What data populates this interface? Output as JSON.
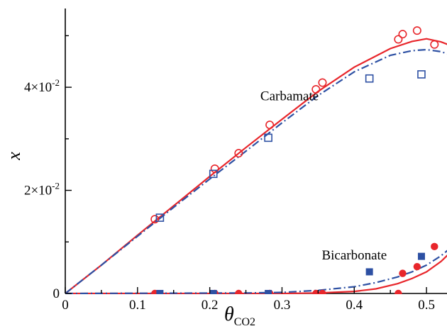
{
  "chart_data": {
    "type": "scatter",
    "title": "",
    "xlabel": "θ",
    "xlabel_subscript": "CO2",
    "ylabel": "x",
    "xlim": [
      0,
      0.55
    ],
    "ylim": [
      0,
      0.055
    ],
    "x_ticks": [
      {
        "value": 0,
        "label": "0"
      },
      {
        "value": 0.1,
        "label": "0.1"
      },
      {
        "value": 0.2,
        "label": "0.2"
      },
      {
        "value": 0.3,
        "label": "0.3"
      },
      {
        "value": 0.4,
        "label": "0.4"
      },
      {
        "value": 0.5,
        "label": "0.5"
      }
    ],
    "y_ticks": [
      {
        "value": 0,
        "label": "0",
        "exp": ""
      },
      {
        "value": 0.02,
        "label": "2×10",
        "exp": "-2"
      },
      {
        "value": 0.04,
        "label": "4×10",
        "exp": "-2"
      }
    ],
    "annotations": [
      {
        "text": "Carbamate",
        "x": 0.27,
        "y": 0.0375
      },
      {
        "text": "Bicarbonate",
        "x": 0.355,
        "y": 0.0066
      }
    ],
    "colors": {
      "red": "#e8262b",
      "blue": "#2d50a3"
    },
    "series": [
      {
        "kind": "points",
        "marker": "circle-open",
        "color": "#e8262b",
        "points": [
          [
            0.124,
            0.0144
          ],
          [
            0.207,
            0.0242
          ],
          [
            0.24,
            0.0272
          ],
          [
            0.283,
            0.0327
          ],
          [
            0.347,
            0.0396
          ],
          [
            0.356,
            0.0409
          ],
          [
            0.461,
            0.0493
          ],
          [
            0.467,
            0.0503
          ],
          [
            0.487,
            0.051
          ],
          [
            0.511,
            0.0483
          ]
        ]
      },
      {
        "kind": "points",
        "marker": "square-open",
        "color": "#2d50a3",
        "points": [
          [
            0.131,
            0.0147
          ],
          [
            0.205,
            0.0232
          ],
          [
            0.281,
            0.0302
          ],
          [
            0.421,
            0.0417
          ],
          [
            0.493,
            0.0425
          ]
        ]
      },
      {
        "kind": "points",
        "marker": "circle-filled",
        "color": "#e8262b",
        "points": [
          [
            0.124,
            0.0
          ],
          [
            0.207,
            0.0
          ],
          [
            0.24,
            0.0
          ],
          [
            0.283,
            0.0
          ],
          [
            0.347,
            0.0
          ],
          [
            0.356,
            0.0
          ],
          [
            0.461,
            0.0
          ],
          [
            0.467,
            0.0039
          ],
          [
            0.487,
            0.0052
          ],
          [
            0.511,
            0.0091
          ]
        ]
      },
      {
        "kind": "points",
        "marker": "square-filled",
        "color": "#2d50a3",
        "points": [
          [
            0.131,
            0.0
          ],
          [
            0.205,
            0.0
          ],
          [
            0.281,
            0.0
          ],
          [
            0.421,
            0.0042
          ],
          [
            0.493,
            0.0072
          ]
        ]
      },
      {
        "kind": "line",
        "style": "solid",
        "color": "#e8262b",
        "points": [
          [
            0,
            0
          ],
          [
            0.05,
            0.0055
          ],
          [
            0.1,
            0.0113
          ],
          [
            0.15,
            0.017
          ],
          [
            0.2,
            0.0227
          ],
          [
            0.25,
            0.0283
          ],
          [
            0.3,
            0.0338
          ],
          [
            0.35,
            0.0392
          ],
          [
            0.4,
            0.0439
          ],
          [
            0.45,
            0.0475
          ],
          [
            0.48,
            0.0489
          ],
          [
            0.5,
            0.0494
          ],
          [
            0.52,
            0.0488
          ],
          [
            0.55,
            0.0472
          ]
        ]
      },
      {
        "kind": "line",
        "style": "dashdot",
        "color": "#2d50a3",
        "points": [
          [
            0,
            0
          ],
          [
            0.05,
            0.0055
          ],
          [
            0.1,
            0.0111
          ],
          [
            0.15,
            0.0167
          ],
          [
            0.2,
            0.0222
          ],
          [
            0.25,
            0.0276
          ],
          [
            0.3,
            0.0331
          ],
          [
            0.35,
            0.0384
          ],
          [
            0.4,
            0.043
          ],
          [
            0.45,
            0.0462
          ],
          [
            0.48,
            0.0471
          ],
          [
            0.5,
            0.0473
          ],
          [
            0.52,
            0.0469
          ],
          [
            0.55,
            0.0455
          ]
        ]
      },
      {
        "kind": "line",
        "style": "solid",
        "color": "#e8262b",
        "points": [
          [
            0,
            0
          ],
          [
            0.3,
            0.0
          ],
          [
            0.35,
            0.0001
          ],
          [
            0.4,
            0.0004
          ],
          [
            0.43,
            0.0009
          ],
          [
            0.46,
            0.0019
          ],
          [
            0.48,
            0.0029
          ],
          [
            0.5,
            0.0042
          ],
          [
            0.52,
            0.0062
          ],
          [
            0.54,
            0.0089
          ],
          [
            0.55,
            0.0104
          ]
        ]
      },
      {
        "kind": "line",
        "style": "dashdot",
        "color": "#2d50a3",
        "points": [
          [
            0,
            0
          ],
          [
            0.25,
            0.0001
          ],
          [
            0.3,
            0.0002
          ],
          [
            0.35,
            0.0006
          ],
          [
            0.4,
            0.0013
          ],
          [
            0.43,
            0.0021
          ],
          [
            0.46,
            0.0032
          ],
          [
            0.48,
            0.0042
          ],
          [
            0.5,
            0.0055
          ],
          [
            0.52,
            0.0073
          ],
          [
            0.54,
            0.0096
          ],
          [
            0.55,
            0.011
          ]
        ]
      }
    ]
  }
}
